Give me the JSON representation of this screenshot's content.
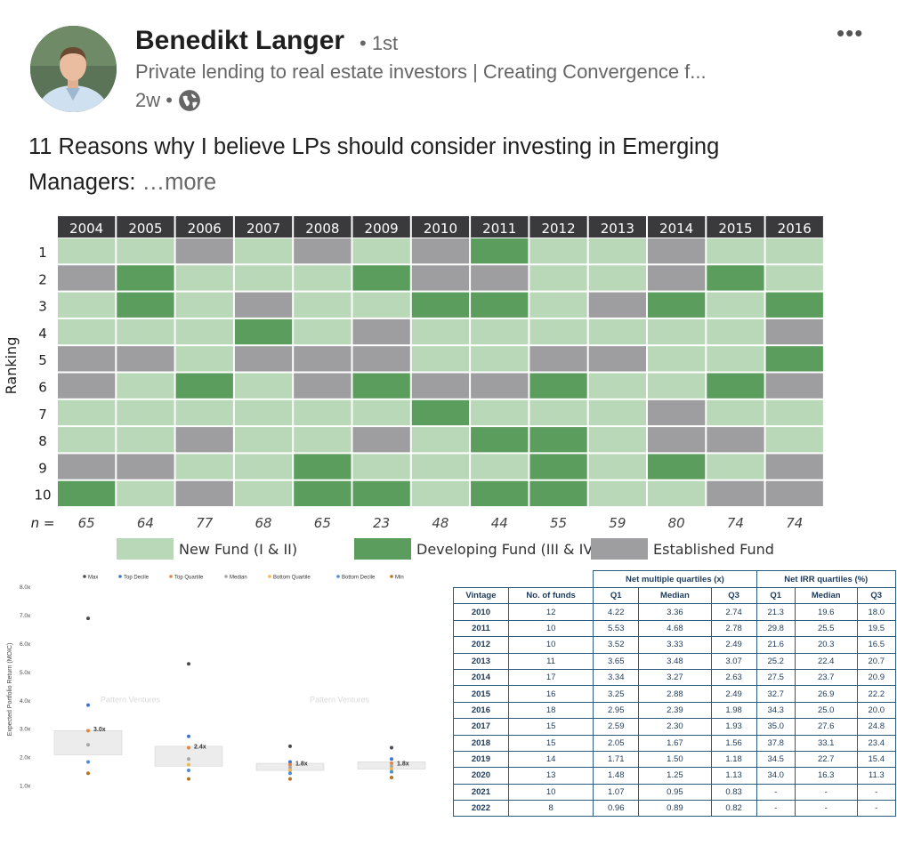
{
  "post": {
    "author": "Benedikt Langer",
    "degree": "• 1st",
    "headline": "Private lending to real estate investors | Creating Convergence f...",
    "time": "2w •",
    "text": "11 Reasons why I believe LPs should consider investing in Emerging Managers:",
    "see_more": "…more",
    "menu_label": "•••",
    "icons": {
      "visibility": "globe-icon",
      "menu": "more-horizontal-icon"
    }
  },
  "heatmap": {
    "years": [
      "2004",
      "2005",
      "2006",
      "2007",
      "2008",
      "2009",
      "2010",
      "2011",
      "2012",
      "2013",
      "2014",
      "2015",
      "2016"
    ],
    "ranks": [
      "1",
      "2",
      "3",
      "4",
      "5",
      "6",
      "7",
      "8",
      "9",
      "10"
    ],
    "y_label": "Ranking",
    "n_label": "n =",
    "n_values": [
      "65",
      "64",
      "77",
      "68",
      "65",
      "23",
      "48",
      "44",
      "55",
      "59",
      "80",
      "74",
      "74"
    ],
    "grid": [
      [
        "N",
        "N",
        "E",
        "N",
        "E",
        "N",
        "E",
        "D",
        "N",
        "N",
        "E",
        "N",
        "N"
      ],
      [
        "E",
        "D",
        "N",
        "N",
        "N",
        "D",
        "E",
        "E",
        "N",
        "N",
        "E",
        "D",
        "N"
      ],
      [
        "N",
        "D",
        "N",
        "E",
        "N",
        "N",
        "D",
        "D",
        "N",
        "E",
        "D",
        "N",
        "D"
      ],
      [
        "N",
        "N",
        "N",
        "D",
        "N",
        "E",
        "N",
        "N",
        "N",
        "N",
        "N",
        "N",
        "E"
      ],
      [
        "E",
        "E",
        "N",
        "E",
        "E",
        "E",
        "N",
        "N",
        "E",
        "E",
        "N",
        "N",
        "D"
      ],
      [
        "E",
        "N",
        "D",
        "N",
        "E",
        "D",
        "E",
        "E",
        "D",
        "N",
        "N",
        "D",
        "E"
      ],
      [
        "N",
        "N",
        "N",
        "N",
        "N",
        "N",
        "D",
        "N",
        "N",
        "N",
        "E",
        "N",
        "N"
      ],
      [
        "N",
        "N",
        "E",
        "N",
        "N",
        "E",
        "N",
        "D",
        "D",
        "N",
        "E",
        "E",
        "N"
      ],
      [
        "E",
        "E",
        "N",
        "N",
        "D",
        "N",
        "N",
        "N",
        "D",
        "N",
        "D",
        "N",
        "E"
      ],
      [
        "D",
        "N",
        "E",
        "N",
        "D",
        "D",
        "N",
        "D",
        "D",
        "N",
        "N",
        "E",
        "E"
      ]
    ],
    "legend": [
      {
        "key": "N",
        "label": "New Fund (I & II)"
      },
      {
        "key": "D",
        "label": "Developing Fund (III & IV)"
      },
      {
        "key": "E",
        "label": "Established Fund"
      }
    ],
    "colors": {
      "N": "#b8d8b7",
      "D": "#5a9d5c",
      "E": "#9e9ea1",
      "header": "#3a3a3c"
    }
  },
  "chart_data": {
    "type": "scatter",
    "ylabel": "Expected Portfolio Return (MOIC)",
    "ylim": [
      0.8,
      8.0
    ],
    "y_ticks": [
      "1.0x",
      "2.0x",
      "3.0x",
      "4.0x",
      "5.0x",
      "6.0x",
      "7.0x",
      "8.0x"
    ],
    "legend": [
      {
        "name": "Max",
        "color": "#4a4a55"
      },
      {
        "name": "Top Decile",
        "color": "#3a76d1"
      },
      {
        "name": "Top Quartile",
        "color": "#e8843c"
      },
      {
        "name": "Median",
        "color": "#a7a7a7"
      },
      {
        "name": "Bottom Quartile",
        "color": "#f0b84b"
      },
      {
        "name": "Bottom Decile",
        "color": "#4a8fd6"
      },
      {
        "name": "Min",
        "color": "#b8731f"
      }
    ],
    "watermarks": [
      "Pattern Ventures",
      "Pattern Ventures"
    ],
    "groups": [
      {
        "box": [
          2.1,
          2.95
        ],
        "label": "3.0x",
        "points": [
          {
            "s": "Max",
            "v": 6.9
          },
          {
            "s": "Top Decile",
            "v": 3.85
          },
          {
            "s": "Top Quartile",
            "v": 2.95
          },
          {
            "s": "Median",
            "v": 2.45
          },
          {
            "s": "Bottom Decile",
            "v": 1.85
          },
          {
            "s": "Min",
            "v": 1.45
          }
        ]
      },
      {
        "box": [
          1.7,
          2.4
        ],
        "label": "2.4x",
        "points": [
          {
            "s": "Max",
            "v": 5.3
          },
          {
            "s": "Top Decile",
            "v": 2.75
          },
          {
            "s": "Top Quartile",
            "v": 2.35
          },
          {
            "s": "Median",
            "v": 1.95
          },
          {
            "s": "Bottom Quartile",
            "v": 1.75
          },
          {
            "s": "Bottom Decile",
            "v": 1.55
          },
          {
            "s": "Min",
            "v": 1.25
          }
        ]
      },
      {
        "box": [
          1.55,
          1.8
        ],
        "label": "1.8x",
        "points": [
          {
            "s": "Max",
            "v": 2.4
          },
          {
            "s": "Top Decile",
            "v": 1.85
          },
          {
            "s": "Top Quartile",
            "v": 1.75
          },
          {
            "s": "Median",
            "v": 1.65
          },
          {
            "s": "Bottom Quartile",
            "v": 1.55
          },
          {
            "s": "Bottom Decile",
            "v": 1.45
          },
          {
            "s": "Min",
            "v": 1.25
          }
        ]
      },
      {
        "box": [
          1.6,
          1.85
        ],
        "label": "1.8x",
        "points": [
          {
            "s": "Max",
            "v": 2.35
          },
          {
            "s": "Top Decile",
            "v": 1.95
          },
          {
            "s": "Top Quartile",
            "v": 1.8
          },
          {
            "s": "Median",
            "v": 1.7
          },
          {
            "s": "Bottom Quartile",
            "v": 1.6
          },
          {
            "s": "Bottom Decile",
            "v": 1.5
          },
          {
            "s": "Min",
            "v": 1.3
          }
        ]
      }
    ]
  },
  "quartile_table": {
    "group_headers": [
      "Net multiple quartiles (x)",
      "Net IRR quartiles (%)"
    ],
    "columns": [
      "Vintage",
      "No. of funds",
      "Q1",
      "Median",
      "Q3",
      "Q1",
      "Median",
      "Q3"
    ],
    "rows": [
      [
        "2010",
        "12",
        "4.22",
        "3.36",
        "2.74",
        "21.3",
        "19.6",
        "18.0"
      ],
      [
        "2011",
        "10",
        "5.53",
        "4.68",
        "2.78",
        "29.8",
        "25.5",
        "19.5"
      ],
      [
        "2012",
        "10",
        "3.52",
        "3.33",
        "2.49",
        "21.6",
        "20.3",
        "16.5"
      ],
      [
        "2013",
        "11",
        "3.65",
        "3.48",
        "3.07",
        "25.2",
        "22.4",
        "20.7"
      ],
      [
        "2014",
        "17",
        "3.34",
        "3.27",
        "2.63",
        "27.5",
        "23.7",
        "20.9"
      ],
      [
        "2015",
        "16",
        "3.25",
        "2.88",
        "2.49",
        "32.7",
        "26.9",
        "22.2"
      ],
      [
        "2016",
        "18",
        "2.95",
        "2.39",
        "1.98",
        "34.3",
        "25.0",
        "20.0"
      ],
      [
        "2017",
        "15",
        "2.59",
        "2.30",
        "1.93",
        "35.0",
        "27.6",
        "24.8"
      ],
      [
        "2018",
        "15",
        "2.05",
        "1.67",
        "1.56",
        "37.8",
        "33.1",
        "23.4"
      ],
      [
        "2019",
        "14",
        "1.71",
        "1.50",
        "1.18",
        "34.5",
        "22.7",
        "15.4"
      ],
      [
        "2020",
        "13",
        "1.48",
        "1.25",
        "1.13",
        "34.0",
        "16.3",
        "11.3"
      ],
      [
        "2021",
        "10",
        "1.07",
        "0.95",
        "0.83",
        "-",
        "-",
        "-"
      ],
      [
        "2022",
        "8",
        "0.96",
        "0.89",
        "0.82",
        "-",
        "-",
        "-"
      ]
    ]
  }
}
